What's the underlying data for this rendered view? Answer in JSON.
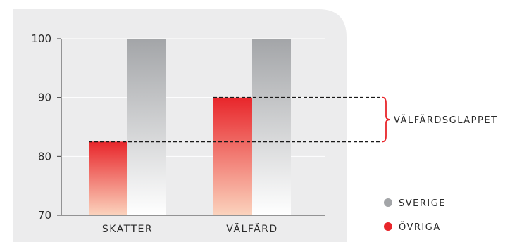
{
  "chart_data": {
    "type": "bar",
    "categories": [
      "SKATTER",
      "VÄLFÄRD"
    ],
    "series": [
      {
        "name": "ÖVRIGA",
        "values": [
          82.5,
          90
        ]
      },
      {
        "name": "SVERIGE",
        "values": [
          100,
          100
        ]
      }
    ],
    "ylim": [
      70,
      100
    ],
    "yticks": [
      "70",
      "80",
      "90",
      "100"
    ],
    "grid": true,
    "legend_position": "bottom-right",
    "annotation": {
      "label": "VÄLFÄRDSGLAPPET",
      "from": 82.5,
      "to": 90
    },
    "colors": {
      "ÖVRIGA": "#e8262b",
      "SVERIGE": "#a3a5a8",
      "panel": "#ececed",
      "bracket": "#e8262b"
    }
  }
}
